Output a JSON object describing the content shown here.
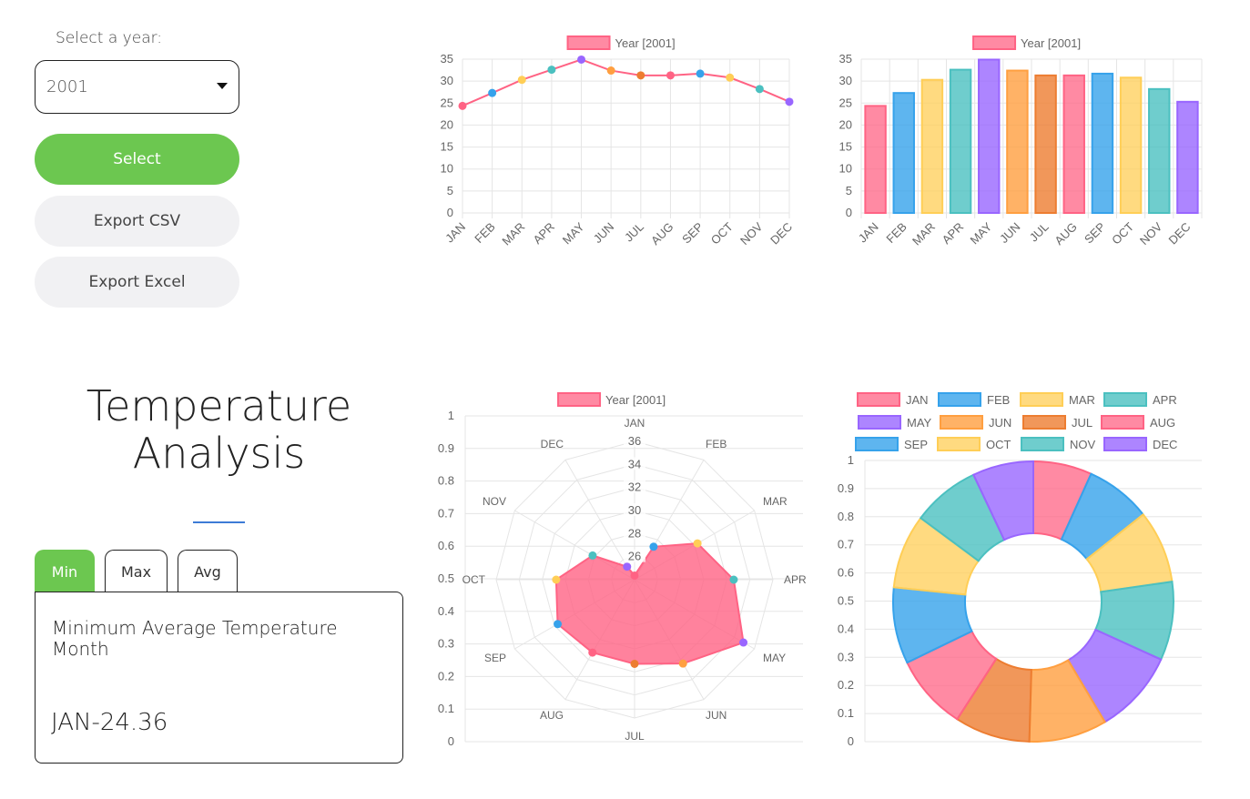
{
  "controls": {
    "select_label": "Select a year:",
    "selected_year": "2001",
    "select_button": "Select",
    "export_csv": "Export CSV",
    "export_excel": "Export Excel"
  },
  "analysis": {
    "title_line1": "Temperature",
    "title_line2": "Analysis",
    "tabs": [
      "Min",
      "Max",
      "Avg"
    ],
    "active_tab": "Min",
    "result_label": "Minimum Average Temperature Month",
    "result_value": "JAN-24.36"
  },
  "colors": {
    "accent_green": "#6cc750",
    "title_rule_blue": "#3d7bd6",
    "series_line": "#ff6384",
    "palette_fill": [
      "rgba(255,99,132,0.75)",
      "rgba(54,162,235,0.8)",
      "rgba(255,206,86,0.75)",
      "rgba(75,192,192,0.8)",
      "rgba(153,102,255,0.8)",
      "rgba(255,159,64,0.8)",
      "rgba(237,125,49,0.8)",
      "rgba(255,99,132,0.75)",
      "rgba(54,162,235,0.8)",
      "rgba(255,206,86,0.75)",
      "rgba(75,192,192,0.8)",
      "rgba(153,102,255,0.8)"
    ],
    "palette_stroke": [
      "#ff6384",
      "#36a2eb",
      "#ffce56",
      "#4bc0c0",
      "#9966ff",
      "#ff9f40",
      "#ed7d31",
      "#ff6384",
      "#36a2eb",
      "#ffce56",
      "#4bc0c0",
      "#9966ff"
    ]
  },
  "chart_data": [
    {
      "type": "line",
      "categories": [
        "JAN",
        "FEB",
        "MAR",
        "APR",
        "MAY",
        "JUN",
        "JUL",
        "AUG",
        "SEP",
        "OCT",
        "NOV",
        "DEC"
      ],
      "series": [
        {
          "name": "Year [2001]",
          "values": [
            24.36,
            27.3,
            30.3,
            32.6,
            34.9,
            32.4,
            31.3,
            31.3,
            31.7,
            30.8,
            28.2,
            25.3
          ]
        }
      ],
      "ylim": [
        0,
        35
      ],
      "yticks": [
        0,
        5,
        10,
        15,
        20,
        25,
        30,
        35
      ],
      "grid": true,
      "legend": "top"
    },
    {
      "type": "bar",
      "categories": [
        "JAN",
        "FEB",
        "MAR",
        "APR",
        "MAY",
        "JUN",
        "JUL",
        "AUG",
        "SEP",
        "OCT",
        "NOV",
        "DEC"
      ],
      "series": [
        {
          "name": "Year [2001]",
          "values": [
            24.36,
            27.3,
            30.3,
            32.6,
            34.9,
            32.4,
            31.3,
            31.3,
            31.7,
            30.8,
            28.2,
            25.3
          ]
        }
      ],
      "ylim": [
        0,
        35
      ],
      "yticks": [
        0,
        5,
        10,
        15,
        20,
        25,
        30,
        35
      ],
      "grid": true,
      "legend": "top"
    },
    {
      "type": "radar",
      "categories": [
        "JAN",
        "FEB",
        "MAR",
        "APR",
        "MAY",
        "JUN",
        "JUL",
        "AUG",
        "SEP",
        "OCT",
        "NOV",
        "DEC"
      ],
      "series": [
        {
          "name": "Year [2001]",
          "values": [
            24.36,
            27.3,
            30.3,
            32.6,
            34.9,
            32.4,
            31.3,
            31.3,
            31.7,
            30.8,
            28.2,
            25.3
          ]
        }
      ],
      "rlim": [
        24,
        36
      ],
      "rticks": [
        26,
        28,
        30,
        32,
        34,
        36
      ],
      "ylim": [
        0,
        1
      ],
      "yticks": [
        0,
        0.1,
        0.2,
        0.3,
        0.4,
        0.5,
        0.6,
        0.7,
        0.8,
        0.9,
        1
      ],
      "legend": "top"
    },
    {
      "type": "doughnut",
      "categories": [
        "JAN",
        "FEB",
        "MAR",
        "APR",
        "MAY",
        "JUN",
        "JUL",
        "AUG",
        "SEP",
        "OCT",
        "NOV",
        "DEC"
      ],
      "values": [
        24.36,
        27.3,
        30.3,
        32.6,
        34.9,
        32.4,
        31.3,
        31.3,
        31.7,
        30.8,
        28.2,
        25.3
      ],
      "ylim": [
        0,
        1
      ],
      "yticks": [
        0,
        0.1,
        0.2,
        0.3,
        0.4,
        0.5,
        0.6,
        0.7,
        0.8,
        0.9,
        1
      ],
      "legend": "top"
    }
  ]
}
